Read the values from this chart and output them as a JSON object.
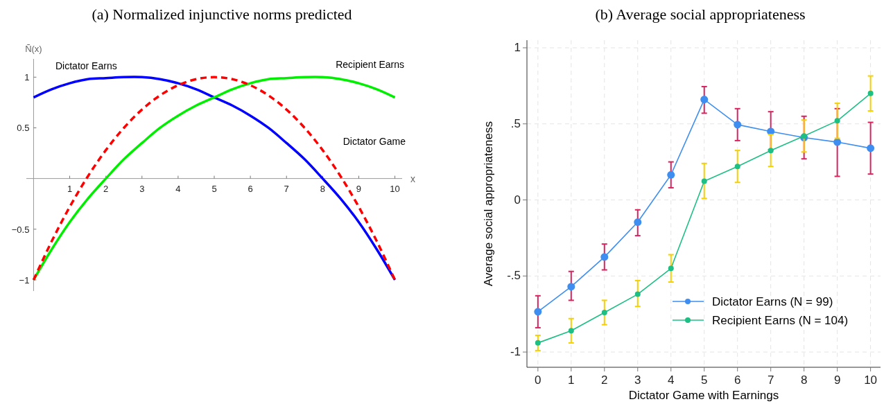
{
  "chart_data": [
    {
      "type": "line",
      "title": "(a) Normalized injunctive norms predicted",
      "ylabel": "Ñ(x)",
      "xlabel": "x",
      "x": [
        0,
        0.5,
        1,
        1.5,
        2,
        2.5,
        3,
        3.5,
        4,
        4.5,
        5,
        5.5,
        6,
        6.5,
        7,
        7.5,
        8,
        8.5,
        9,
        9.5,
        10
      ],
      "series": [
        {
          "name": "Dictator Earns",
          "color": "#0000ff",
          "line_style": "solid",
          "values": [
            0.8,
            0.88,
            0.94,
            0.98,
            0.99,
            1.0,
            1.0,
            0.98,
            0.94,
            0.88,
            0.8,
            0.72,
            0.62,
            0.5,
            0.35,
            0.19,
            0,
            -0.2,
            -0.43,
            -0.7,
            -1
          ]
        },
        {
          "name": "Recipient Earns",
          "color": "#00ee00",
          "line_style": "solid",
          "values": [
            -1,
            -0.7,
            -0.43,
            -0.2,
            0,
            0.19,
            0.35,
            0.5,
            0.62,
            0.72,
            0.8,
            0.88,
            0.94,
            0.98,
            0.99,
            1.0,
            1.0,
            0.98,
            0.94,
            0.88,
            0.8
          ]
        },
        {
          "name": "Dictator Game",
          "color": "#ff0000",
          "line_style": "dashed",
          "values": [
            -1,
            -0.62,
            -0.28,
            0.02,
            0.28,
            0.5,
            0.68,
            0.82,
            0.92,
            0.98,
            1,
            0.98,
            0.92,
            0.82,
            0.68,
            0.5,
            0.28,
            0.02,
            -0.28,
            -0.62,
            -1
          ]
        }
      ],
      "xlim": [
        -0.2,
        10.2
      ],
      "ylim": [
        -1.11,
        1.18
      ],
      "xticks": [
        1,
        2,
        3,
        4,
        5,
        6,
        7,
        8,
        9,
        10
      ],
      "yticks": [
        {
          "value": -1,
          "label": "−1"
        },
        {
          "value": -0.5,
          "label": "−0.5"
        },
        0.5,
        1
      ],
      "grid": false,
      "legend": false,
      "marker": "none"
    },
    {
      "type": "line",
      "title": "(b) Average social appropriateness",
      "xlabel": "Dictator Game with Earnings",
      "ylabel": "Average social appropriateness",
      "x": [
        0,
        1,
        2,
        3,
        4,
        5,
        6,
        7,
        8,
        9,
        10
      ],
      "series": [
        {
          "name": "Dictator Earns (N = 99)",
          "color": "#3d8ef0",
          "values": [
            -0.735,
            -0.57,
            -0.375,
            -0.146,
            0.165,
            0.66,
            0.495,
            0.45,
            0.41,
            0.38,
            0.34
          ],
          "errors": [
            [
              -0.84,
              -0.63
            ],
            [
              -0.66,
              -0.47
            ],
            [
              -0.46,
              -0.29
            ],
            [
              -0.235,
              -0.065
            ],
            [
              0.08,
              0.25
            ],
            [
              0.57,
              0.745
            ],
            [
              0.39,
              0.6
            ],
            [
              0.33,
              0.58
            ],
            [
              0.27,
              0.55
            ],
            [
              0.155,
              0.6
            ],
            [
              0.17,
              0.51
            ]
          ]
        },
        {
          "name": "Recipient Earns (N = 104)",
          "color": "#1dbf85",
          "values": [
            -0.94,
            -0.86,
            -0.74,
            -0.62,
            -0.45,
            0.123,
            0.22,
            0.325,
            0.42,
            0.52,
            0.7
          ],
          "errors": [
            [
              -0.99,
              -0.89
            ],
            [
              -0.94,
              -0.78
            ],
            [
              -0.82,
              -0.66
            ],
            [
              -0.7,
              -0.53
            ],
            [
              -0.54,
              -0.36
            ],
            [
              0.01,
              0.24
            ],
            [
              0.115,
              0.325
            ],
            [
              0.22,
              0.43
            ],
            [
              0.315,
              0.525
            ],
            [
              0.405,
              0.635
            ],
            [
              0.585,
              0.815
            ]
          ]
        }
      ],
      "xlim": [
        -0.33,
        10.3
      ],
      "ylim": [
        -1.1,
        1.05
      ],
      "xticks": [
        0,
        1,
        2,
        3,
        4,
        5,
        6,
        7,
        8,
        9,
        10
      ],
      "yticks": [
        {
          "value": -1,
          "label": "-1"
        },
        {
          "value": -0.5,
          "label": "-.5"
        },
        0,
        {
          "value": 0.5,
          "label": ".5"
        },
        1
      ],
      "grid": true,
      "legend": "bottom right",
      "marker": "circle"
    }
  ]
}
